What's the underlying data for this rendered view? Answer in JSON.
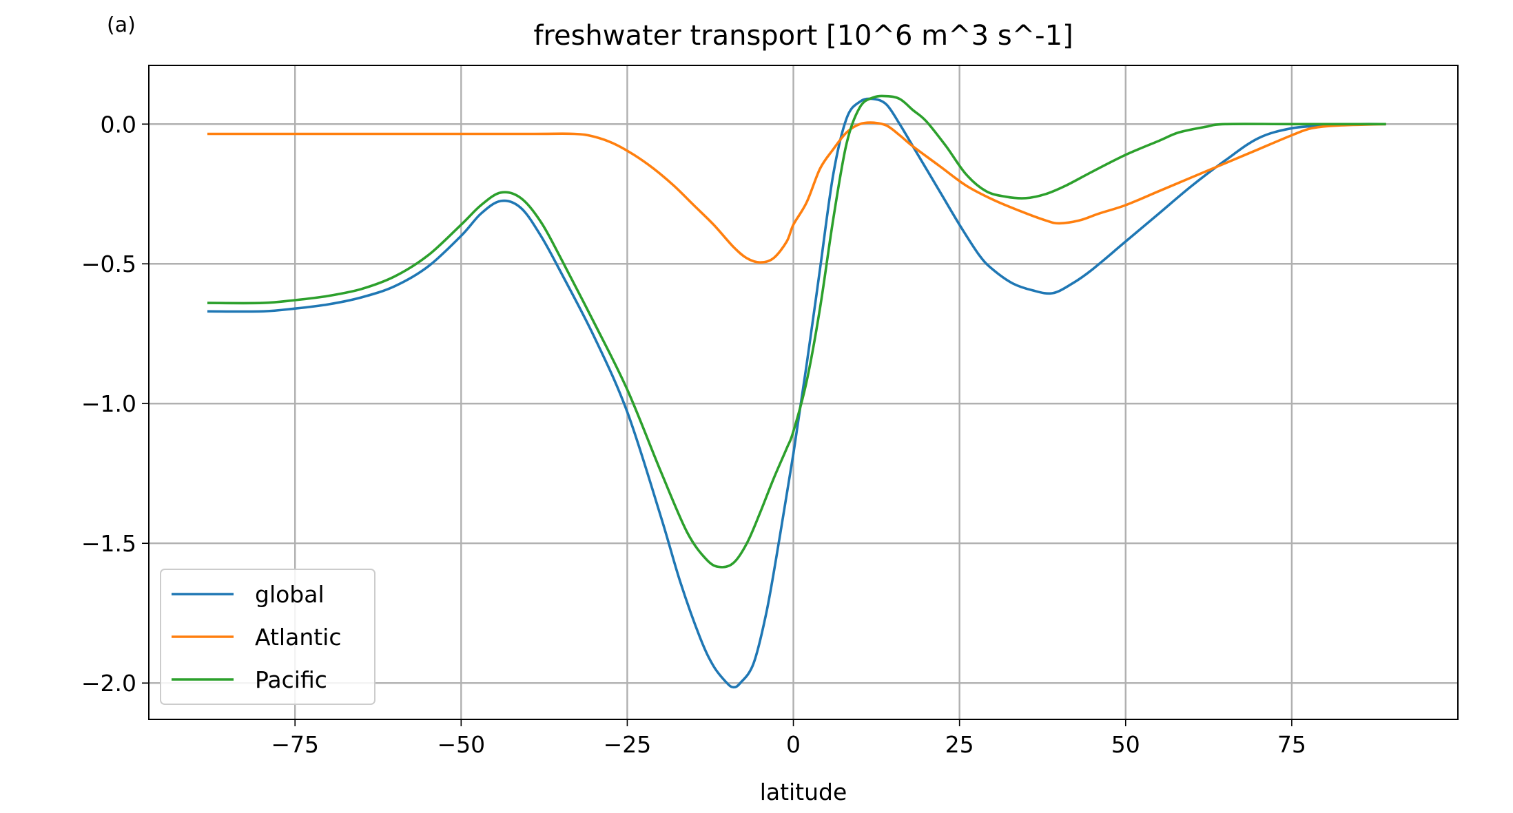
{
  "panel_label": "(a)",
  "chart_data": {
    "type": "line",
    "title": "freshwater transport [10^6 m^3 s^-1]",
    "xlabel": "latitude",
    "ylabel": "",
    "xlim": [
      -97,
      100
    ],
    "ylim": [
      -2.13,
      0.21
    ],
    "xticks": [
      -75,
      -50,
      -25,
      0,
      25,
      50,
      75
    ],
    "xtick_labels": [
      "−75",
      "−50",
      "−25",
      "0",
      "25",
      "50",
      "75"
    ],
    "yticks": [
      0.0,
      -0.5,
      -1.0,
      -1.5,
      -2.0
    ],
    "ytick_labels": [
      "0.0",
      "−0.5",
      "−1.0",
      "−1.5",
      "−2.0"
    ],
    "grid": true,
    "legend_position": "lower-left",
    "series": [
      {
        "name": "global",
        "color": "#1f77b4",
        "x": [
          -88,
          -80,
          -75,
          -70,
          -65,
          -60,
          -55,
          -50,
          -47,
          -44,
          -41,
          -38,
          -35,
          -30,
          -25,
          -20,
          -17,
          -14,
          -12,
          -10,
          -9,
          -8,
          -6,
          -4,
          -2,
          0,
          2,
          4,
          6,
          8,
          10,
          12,
          14,
          16,
          18,
          20,
          22,
          25,
          28,
          30,
          33,
          36,
          39,
          42,
          45,
          50,
          55,
          60,
          65,
          70,
          75,
          80,
          85,
          89
        ],
        "y": [
          -0.67,
          -0.67,
          -0.66,
          -0.645,
          -0.62,
          -0.58,
          -0.51,
          -0.4,
          -0.32,
          -0.275,
          -0.3,
          -0.4,
          -0.53,
          -0.76,
          -1.03,
          -1.4,
          -1.64,
          -1.84,
          -1.94,
          -2.0,
          -2.015,
          -2.0,
          -1.93,
          -1.74,
          -1.47,
          -1.18,
          -0.86,
          -0.52,
          -0.18,
          0.02,
          0.08,
          0.09,
          0.07,
          0.0,
          -0.08,
          -0.16,
          -0.24,
          -0.36,
          -0.47,
          -0.52,
          -0.57,
          -0.595,
          -0.605,
          -0.57,
          -0.52,
          -0.42,
          -0.32,
          -0.22,
          -0.13,
          -0.05,
          -0.015,
          -0.005,
          0.0,
          0.0
        ]
      },
      {
        "name": "Atlantic",
        "color": "#ff7f0e",
        "x": [
          -88,
          -80,
          -60,
          -40,
          -33,
          -30,
          -27,
          -24,
          -21,
          -18,
          -15,
          -12,
          -9,
          -7,
          -5,
          -3,
          -1,
          0,
          2,
          4,
          6,
          8,
          10,
          12,
          14,
          16,
          18,
          22,
          26,
          30,
          34,
          38,
          40,
          43,
          46,
          50,
          55,
          60,
          65,
          70,
          75,
          78,
          82,
          89
        ],
        "y": [
          -0.035,
          -0.035,
          -0.035,
          -0.035,
          -0.035,
          -0.045,
          -0.07,
          -0.11,
          -0.16,
          -0.22,
          -0.29,
          -0.36,
          -0.44,
          -0.48,
          -0.495,
          -0.48,
          -0.42,
          -0.36,
          -0.28,
          -0.16,
          -0.09,
          -0.03,
          0.0,
          0.005,
          -0.005,
          -0.04,
          -0.08,
          -0.15,
          -0.22,
          -0.27,
          -0.31,
          -0.345,
          -0.355,
          -0.345,
          -0.32,
          -0.29,
          -0.24,
          -0.19,
          -0.14,
          -0.09,
          -0.04,
          -0.015,
          -0.005,
          0.0
        ]
      },
      {
        "name": "Pacific",
        "color": "#2ca02c",
        "x": [
          -88,
          -80,
          -75,
          -70,
          -65,
          -60,
          -55,
          -50,
          -47,
          -44,
          -41,
          -38,
          -35,
          -30,
          -25,
          -20,
          -16,
          -13,
          -11,
          -9,
          -7,
          -5,
          -3,
          -1,
          0,
          2,
          4,
          6,
          8,
          10,
          12,
          14,
          16,
          18,
          20,
          23,
          26,
          29,
          32,
          35,
          38,
          41,
          45,
          50,
          55,
          58,
          62,
          65,
          75,
          89
        ],
        "y": [
          -0.64,
          -0.64,
          -0.63,
          -0.615,
          -0.59,
          -0.545,
          -0.47,
          -0.36,
          -0.29,
          -0.245,
          -0.265,
          -0.35,
          -0.48,
          -0.71,
          -0.95,
          -1.24,
          -1.46,
          -1.56,
          -1.585,
          -1.57,
          -1.5,
          -1.39,
          -1.27,
          -1.16,
          -1.1,
          -0.92,
          -0.66,
          -0.34,
          -0.07,
          0.06,
          0.095,
          0.1,
          0.09,
          0.05,
          0.01,
          -0.08,
          -0.18,
          -0.24,
          -0.26,
          -0.265,
          -0.25,
          -0.22,
          -0.17,
          -0.11,
          -0.06,
          -0.03,
          -0.01,
          0.0,
          0.0,
          0.0
        ]
      }
    ]
  }
}
